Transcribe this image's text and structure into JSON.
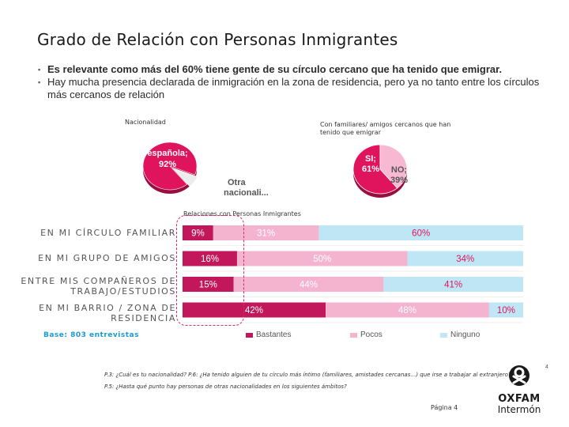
{
  "title": "Grado de Relación con Personas Inmigrantes",
  "bullets": [
    "Es relevante como más del 60% tiene gente de su círculo cercano que ha tenido que emigrar.",
    "Hay mucha presencia declarada de inmigración en la zona de residencia, pero ya no tanto entre los círculos más cercanos de relación"
  ],
  "colors": {
    "bastantes": "#c2185b",
    "pocos": "#f4b3cf",
    "ninguno": "#bfe6f5",
    "pie_main": "#e0135d",
    "pie_other": "#ededed",
    "pie_no": "#f7b9d2",
    "accent_blue": "#1a9ad6"
  },
  "chart_data": [
    {
      "type": "pie",
      "title": "Nacionalidad",
      "slices": [
        {
          "label": "española",
          "value": 92,
          "text": "española; 92%"
        },
        {
          "label": "Otra nacionali...",
          "value": 8
        }
      ]
    },
    {
      "type": "pie",
      "title": "Con familiares/ amigos cercanos que han tenido que emigrar",
      "slices": [
        {
          "label": "SI",
          "value": 61,
          "text": "SI; 61%"
        },
        {
          "label": "NO",
          "value": 39,
          "text": "NO; 39%"
        }
      ]
    },
    {
      "type": "bar",
      "title": "Relaciones con Personas Inmigrantes",
      "stacked": true,
      "orientation": "horizontal",
      "categories": [
        "EN MI CÍRCULO FAMILIAR",
        "EN MI GRUPO DE AMIGOS",
        "ENTRE MIS COMPAÑEROS DE TRABAJO/ESTUDIOS",
        "EN MI BARRIO / ZONA DE RESIDENCIA"
      ],
      "category_lines": [
        [
          "EN MI CÍRCULO FAMILIAR"
        ],
        [
          "EN MI GRUPO DE AMIGOS"
        ],
        [
          "ENTRE MIS COMPAÑEROS DE",
          "TRABAJO/ESTUDIOS"
        ],
        [
          "EN MI BARRIO / ZONA DE",
          "RESIDENCIA"
        ]
      ],
      "series": [
        {
          "name": "Bastantes",
          "values": [
            9,
            16,
            15,
            42
          ]
        },
        {
          "name": "Pocos",
          "values": [
            31,
            50,
            44,
            48
          ]
        },
        {
          "name": "Ninguno",
          "values": [
            60,
            34,
            41,
            10
          ]
        }
      ],
      "xlim": [
        0,
        100
      ],
      "legend": "bottom"
    }
  ],
  "base_text": "Base: 803 entrevistas",
  "footnotes": [
    "P.3: ¿Cuál es tu nacionalidad? P.6: ¿Ha tenido alguien de tu círculo más íntimo (familiares, amistades cercanas…) que irse a trabajar al extranjero?",
    "P.5: ¿Hasta qué punto hay personas de otras nacionalidades en los siguientes ámbitos?"
  ],
  "page_label": "Página 4",
  "slide_number": "4",
  "logo": {
    "name": "OXFAM",
    "sub": "Intermón"
  }
}
